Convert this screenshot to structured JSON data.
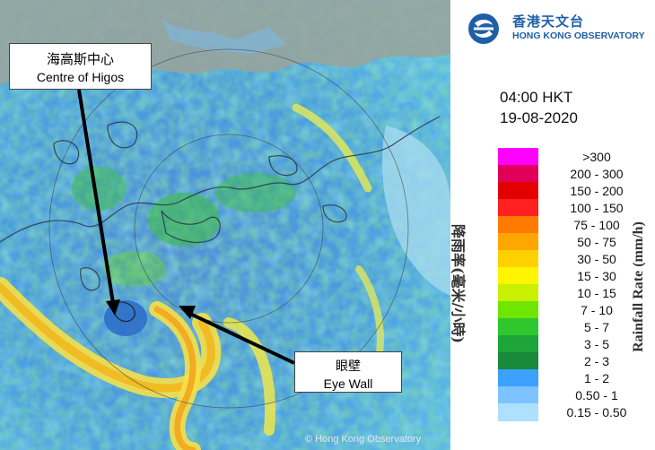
{
  "map": {
    "copyright": "© Hong Kong Observatory"
  },
  "callouts": {
    "centre": {
      "zh": "海高斯中心",
      "en": "Centre of Higos"
    },
    "eye_wall": {
      "zh": "眼壁",
      "en": "Eye Wall"
    }
  },
  "logo": {
    "zh": "香港天文台",
    "en": "HONG KONG OBSERVATORY"
  },
  "timestamp": {
    "time": "04:00 HKT",
    "date": "19-08-2020"
  },
  "legend": {
    "title_zh": "降雨率(毫米/小時)",
    "title_en": "Rainfall Rate (mm/h)",
    "items": [
      {
        "label": ">300",
        "color": "#ff00ff"
      },
      {
        "label": "200 - 300",
        "color": "#e0005a"
      },
      {
        "label": "150 - 200",
        "color": "#e30000"
      },
      {
        "label": "100 - 150",
        "color": "#ff2020"
      },
      {
        "label": "75 - 100",
        "color": "#ff7a00"
      },
      {
        "label": "50 - 75",
        "color": "#ffa700"
      },
      {
        "label": "30 - 50",
        "color": "#ffd000"
      },
      {
        "label": "15 - 30",
        "color": "#fff500"
      },
      {
        "label": "10 - 15",
        "color": "#c8f000"
      },
      {
        "label": "7 - 10",
        "color": "#6ee600"
      },
      {
        "label": "5 - 7",
        "color": "#2ec82e"
      },
      {
        "label": "3 - 5",
        "color": "#1ea53a"
      },
      {
        "label": "2 - 3",
        "color": "#198a3a"
      },
      {
        "label": "1 - 2",
        "color": "#3ca0ff"
      },
      {
        "label": "0.50 - 1",
        "color": "#7cc3ff"
      },
      {
        "label": "0.15 - 0.50",
        "color": "#aee0ff"
      }
    ]
  }
}
